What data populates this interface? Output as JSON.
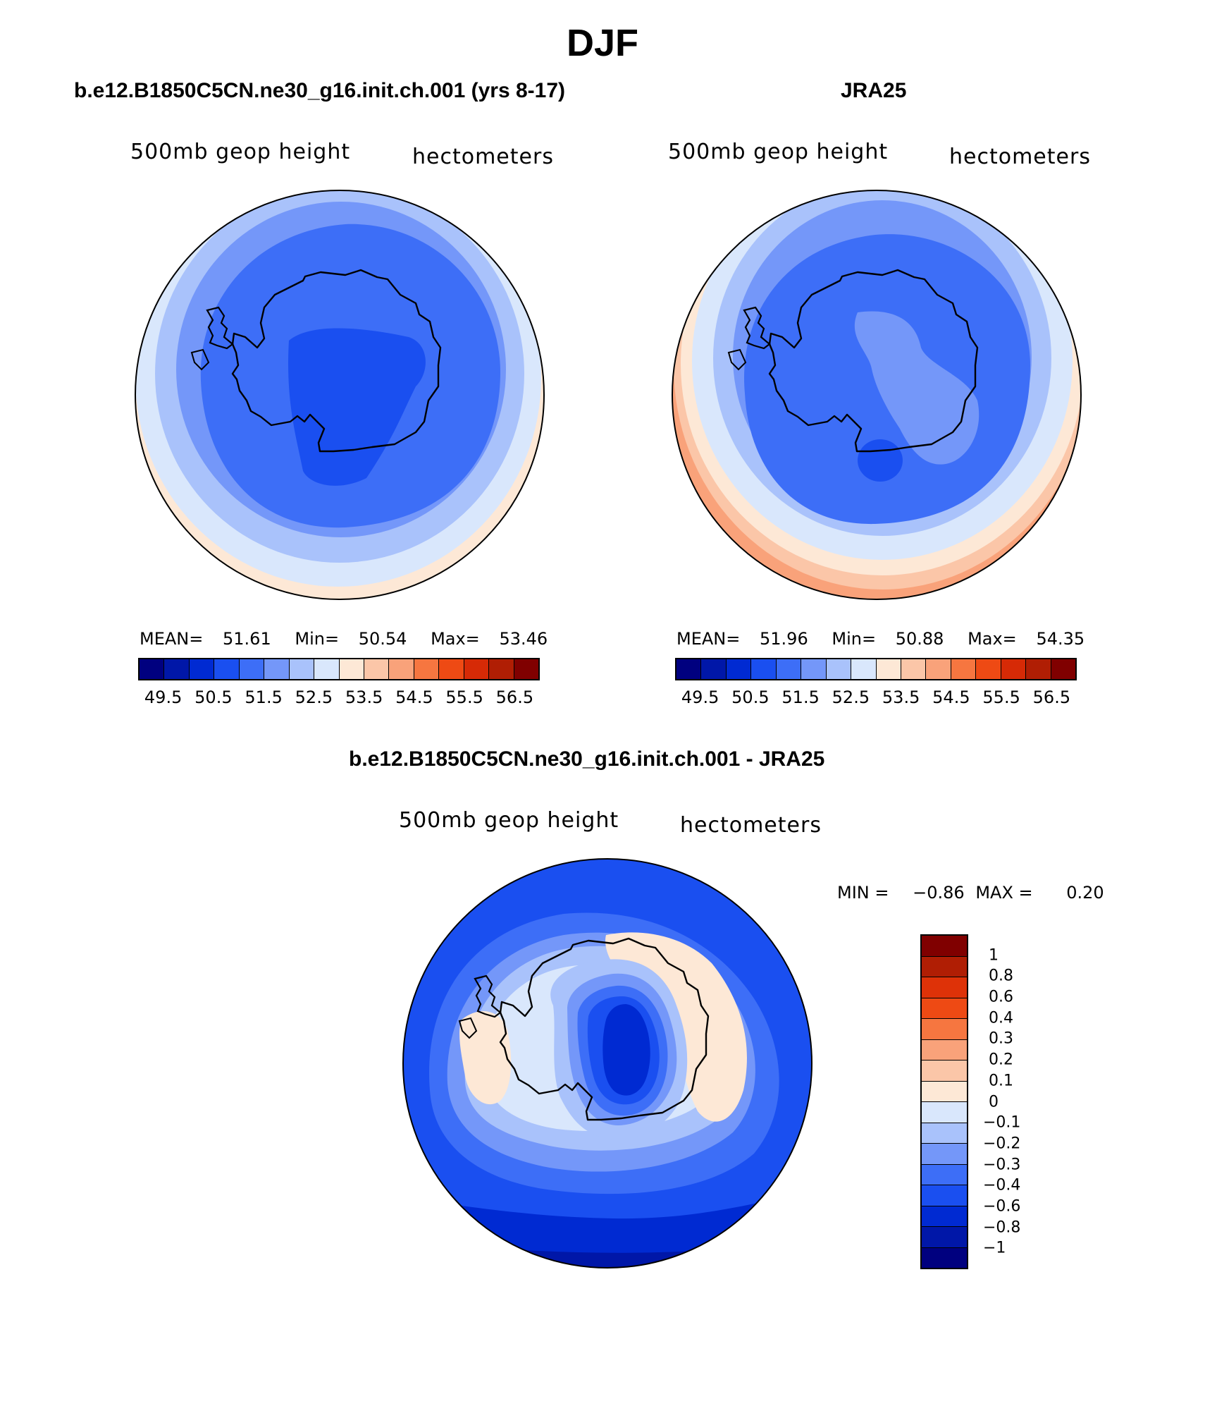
{
  "title": "DJF",
  "panels": {
    "model": {
      "title": "b.e12.B1850C5CN.ne30_g16.init.ch.001 (yrs 8-17)",
      "variable": "500mb geop height",
      "units": "hectometers",
      "mean_label": "MEAN=",
      "mean": "51.61",
      "min_label": "Min=",
      "min": "50.54",
      "max_label": "Max=",
      "max": "53.46"
    },
    "obs": {
      "title": "JRA25",
      "variable": "500mb geop height",
      "units": "hectometers",
      "mean_label": "MEAN=",
      "mean": "51.96",
      "min_label": "Min=",
      "min": "50.88",
      "max_label": "Max=",
      "max": "54.35"
    },
    "diff": {
      "title": "b.e12.B1850C5CN.ne30_g16.init.ch.001 - JRA25",
      "variable": "500mb geop height",
      "units": "hectometers",
      "min_label": "MIN =",
      "min": "−0.86",
      "max_label": "MAX =",
      "max": "0.20"
    }
  },
  "colors": {
    "abs_scale": [
      "#00007f",
      "#0017a8",
      "#002ad2",
      "#1a4ff0",
      "#3d6ef7",
      "#7497f9",
      "#a9c2fb",
      "#d9e7fc",
      "#fde8d6",
      "#fbc6a8",
      "#f9a27a",
      "#f67640",
      "#ee4a14",
      "#d62a06",
      "#b01e04",
      "#800000"
    ],
    "diff_scale_top_down": [
      "#800000",
      "#b01e04",
      "#de3208",
      "#ee4a14",
      "#f67640",
      "#f9a27a",
      "#fbc6a8",
      "#fde8d6",
      "#d9e7fc",
      "#a9c2fb",
      "#7497f9",
      "#3d6ef7",
      "#1a4ff0",
      "#002ad2",
      "#0017a8",
      "#00007f"
    ],
    "land_outline": "#000000"
  },
  "colorbar_abs_ticks": [
    "49.5",
    "50.5",
    "51.5",
    "52.5",
    "53.5",
    "54.5",
    "55.5",
    "56.5"
  ],
  "colorbar_diff_ticks": [
    "1",
    "0.8",
    "0.6",
    "0.4",
    "0.3",
    "0.2",
    "0.1",
    "0",
    "−0.1",
    "−0.2",
    "−0.3",
    "−0.4",
    "−0.6",
    "−0.8",
    "−1"
  ],
  "chart_data": [
    {
      "type": "heatmap",
      "projection": "south polar stereographic",
      "title": "b.e12.B1850C5CN.ne30_g16.init.ch.001 (yrs 8-17)",
      "variable": "500mb geop height",
      "units": "hectometers",
      "mean": 51.61,
      "min": 50.54,
      "max": 53.46,
      "contour_levels": [
        49.5,
        50,
        50.5,
        51,
        51.5,
        52,
        52.5,
        53,
        53.5,
        54,
        54.5,
        55,
        55.5,
        56,
        56.5
      ]
    },
    {
      "type": "heatmap",
      "projection": "south polar stereographic",
      "title": "JRA25",
      "variable": "500mb geop height",
      "units": "hectometers",
      "mean": 51.96,
      "min": 50.88,
      "max": 54.35,
      "contour_levels": [
        49.5,
        50,
        50.5,
        51,
        51.5,
        52,
        52.5,
        53,
        53.5,
        54,
        54.5,
        55,
        55.5,
        56,
        56.5
      ]
    },
    {
      "type": "heatmap",
      "projection": "south polar stereographic",
      "title": "b.e12.B1850C5CN.ne30_g16.init.ch.001 - JRA25",
      "variable": "500mb geop height",
      "units": "hectometers",
      "min": -0.86,
      "max": 0.2,
      "contour_levels": [
        -1,
        -0.8,
        -0.6,
        -0.4,
        -0.3,
        -0.2,
        -0.1,
        0,
        0.1,
        0.2,
        0.3,
        0.4,
        0.6,
        0.8,
        1
      ]
    }
  ]
}
